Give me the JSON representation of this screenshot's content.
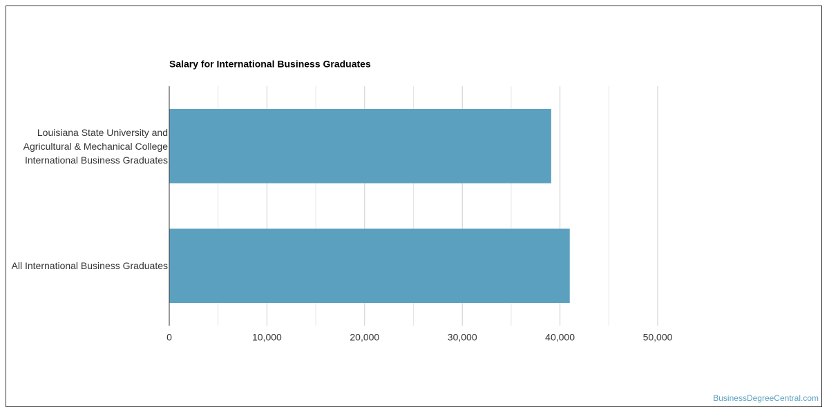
{
  "chart_data": {
    "type": "bar",
    "orientation": "horizontal",
    "title": "Salary for International Business Graduates",
    "categories": [
      "Louisiana State University and Agricultural & Mechanical College International Business Graduates",
      "All International Business Graduates"
    ],
    "values": [
      39100,
      41000
    ],
    "color": "#5ba1bf",
    "xlim": [
      0,
      50000
    ],
    "xticks": [
      0,
      {
        "value": 10000,
        "label": "10,000"
      },
      {
        "value": 20000,
        "label": "20,000"
      },
      {
        "value": 30000,
        "label": "30,000"
      },
      {
        "value": 40000,
        "label": "40,000"
      },
      {
        "value": 50000,
        "label": "50,000"
      }
    ],
    "minor_xticks": [
      5000,
      15000,
      25000,
      35000,
      45000
    ],
    "grid": true,
    "source": "BusinessDegreeCentral.com"
  }
}
